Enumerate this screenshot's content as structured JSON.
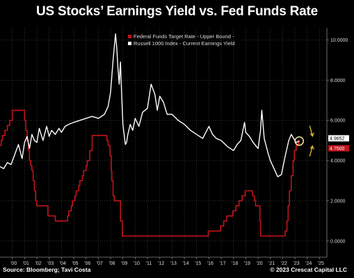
{
  "title": "US Stocks’ Earnings Yield vs. Fed Funds Rate",
  "source": "Source: Bloomberg; Tavi Costa",
  "copyright": "© 2023 Crescat Capital LLC",
  "colors": {
    "background": "#000000",
    "fed": "#c0141c",
    "yield": "#ffffff",
    "grid": "#555555",
    "arrow": "#e6c229"
  },
  "chart_data": {
    "type": "line",
    "title": "US Stocks’ Earnings Yield vs. Fed Funds Rate",
    "xlabel": "",
    "ylabel": "",
    "xlim": [
      1999.0,
      2025.6
    ],
    "ylim": [
      -0.8,
      10.6
    ],
    "grid": true,
    "legend_position": "top-center",
    "x_ticks": [
      2000,
      2001,
      2002,
      2003,
      2004,
      2005,
      2006,
      2007,
      2008,
      2009,
      2010,
      2011,
      2012,
      2013,
      2014,
      2015,
      2016,
      2017,
      2018,
      2019,
      2020,
      2021,
      2022,
      2023,
      2024,
      2025
    ],
    "x_tick_labels": [
      "'00",
      "'01",
      "'02",
      "'03",
      "'04",
      "'05",
      "'06",
      "'07",
      "'08",
      "'09",
      "'10",
      "'11",
      "'12",
      "'13",
      "'14",
      "'15",
      "'16",
      "'17",
      "'18",
      "'19",
      "'20",
      "'21",
      "'22",
      "'23",
      "'24",
      "'25"
    ],
    "y_ticks": [
      0,
      2,
      4,
      6,
      8,
      10
    ],
    "y_tick_labels": [
      "0.0000",
      "2.0000",
      "4.0000",
      "6.0000",
      "8.0000",
      "10.0000"
    ],
    "last_value_labels": [
      "4.9652",
      "4.7500"
    ],
    "series": [
      {
        "name": "Federal Funds Target Rate - Upper Bound -",
        "color": "#c0141c",
        "step": true,
        "x": [
          1999.0,
          1999.1,
          1999.2,
          1999.4,
          1999.6,
          1999.8,
          2000.0,
          2000.1,
          2000.2,
          2000.4,
          2001.0,
          2001.1,
          2001.2,
          2001.3,
          2001.4,
          2001.5,
          2001.6,
          2001.7,
          2001.8,
          2001.9,
          2002.0,
          2002.9,
          2003.5,
          2004.5,
          2004.6,
          2004.8,
          2004.9,
          2005.1,
          2005.2,
          2005.4,
          2005.5,
          2005.7,
          2005.8,
          2006.0,
          2006.1,
          2006.3,
          2006.5,
          2007.7,
          2007.8,
          2007.95,
          2008.05,
          2008.1,
          2008.2,
          2008.3,
          2008.8,
          2008.95,
          2015.95,
          2016.95,
          2017.2,
          2017.45,
          2017.95,
          2018.2,
          2018.45,
          2018.7,
          2018.95,
          2019.55,
          2019.7,
          2019.8,
          2020.15,
          2020.2,
          2022.2,
          2022.35,
          2022.45,
          2022.55,
          2022.7,
          2022.85,
          2022.95,
          2023.1,
          2023.25,
          2023.35
        ],
        "y": [
          4.75,
          5.0,
          5.25,
          5.5,
          5.75,
          6.0,
          6.5,
          6.5,
          6.5,
          6.5,
          6.0,
          5.5,
          5.0,
          4.5,
          4.0,
          3.75,
          3.5,
          3.0,
          2.5,
          2.0,
          1.75,
          1.25,
          1.0,
          1.25,
          1.5,
          1.75,
          2.0,
          2.25,
          2.5,
          2.75,
          3.0,
          3.25,
          3.5,
          3.75,
          4.0,
          4.5,
          5.25,
          5.0,
          4.75,
          4.25,
          3.5,
          3.0,
          2.25,
          2.0,
          1.0,
          0.25,
          0.5,
          0.75,
          1.0,
          1.25,
          1.5,
          1.75,
          2.0,
          2.25,
          2.5,
          2.25,
          2.0,
          1.75,
          1.0,
          0.25,
          0.5,
          1.0,
          1.75,
          2.5,
          3.25,
          4.0,
          4.5,
          4.75,
          5.0,
          4.75
        ]
      },
      {
        "name": "Russell 1000 Index - Current Earnings Yield",
        "color": "#ffffff",
        "step": false,
        "x": [
          1999.0,
          1999.3,
          1999.6,
          1999.9,
          2000.2,
          2000.5,
          2000.8,
          2001.0,
          2001.2,
          2001.4,
          2001.6,
          2001.8,
          2002.0,
          2002.2,
          2002.5,
          2002.8,
          2003.0,
          2003.2,
          2003.5,
          2003.8,
          2004.0,
          2004.3,
          2004.6,
          2005.0,
          2005.5,
          2006.0,
          2006.5,
          2007.0,
          2007.5,
          2007.8,
          2008.0,
          2008.2,
          2008.4,
          2008.5,
          2008.6,
          2008.7,
          2008.8,
          2008.9,
          2009.0,
          2009.1,
          2009.2,
          2009.3,
          2009.4,
          2009.6,
          2009.8,
          2010.0,
          2010.3,
          2010.6,
          2011.0,
          2011.3,
          2011.6,
          2011.8,
          2012.0,
          2012.3,
          2012.6,
          2013.0,
          2013.5,
          2014.0,
          2014.5,
          2015.0,
          2015.5,
          2016.0,
          2016.3,
          2016.6,
          2017.0,
          2017.5,
          2018.0,
          2018.3,
          2018.6,
          2018.9,
          2019.0,
          2019.3,
          2019.6,
          2020.0,
          2020.2,
          2020.3,
          2020.5,
          2020.8,
          2021.0,
          2021.3,
          2021.6,
          2021.9,
          2022.2,
          2022.5,
          2022.7,
          2022.9,
          2023.1,
          2023.35
        ],
        "y": [
          3.7,
          3.6,
          3.9,
          3.8,
          4.3,
          4.8,
          4.1,
          4.9,
          5.2,
          4.6,
          5.3,
          5.0,
          4.9,
          5.6,
          5.0,
          5.7,
          5.2,
          5.5,
          5.3,
          5.6,
          5.4,
          5.7,
          5.8,
          5.9,
          6.0,
          6.1,
          6.2,
          6.1,
          6.3,
          6.7,
          7.4,
          9.0,
          10.3,
          9.6,
          8.6,
          7.8,
          8.9,
          7.3,
          5.8,
          5.3,
          4.8,
          4.9,
          5.3,
          5.8,
          5.5,
          6.1,
          5.7,
          6.4,
          6.6,
          7.8,
          7.3,
          6.5,
          7.2,
          6.9,
          6.3,
          6.3,
          6.0,
          5.8,
          5.5,
          5.3,
          5.1,
          5.7,
          5.3,
          5.1,
          5.0,
          4.7,
          4.5,
          4.8,
          5.0,
          5.9,
          5.4,
          5.2,
          4.9,
          4.6,
          5.5,
          6.5,
          5.1,
          4.4,
          4.0,
          3.6,
          3.2,
          3.3,
          4.2,
          5.0,
          5.3,
          5.1,
          4.9,
          4.97
        ]
      }
    ]
  }
}
